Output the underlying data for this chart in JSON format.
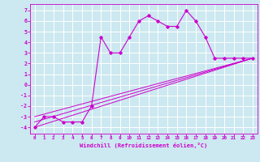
{
  "xlabel": "Windchill (Refroidissement éolien,°C)",
  "background_color": "#cce8f0",
  "grid_color": "#ffffff",
  "line_color": "#cc00cc",
  "x_ticks": [
    0,
    1,
    2,
    3,
    4,
    5,
    6,
    7,
    8,
    9,
    10,
    11,
    12,
    13,
    14,
    15,
    16,
    17,
    18,
    19,
    20,
    21,
    22,
    23
  ],
  "y_ticks": [
    -4,
    -3,
    -2,
    -1,
    0,
    1,
    2,
    3,
    4,
    5,
    6,
    7
  ],
  "xlim": [
    -0.5,
    23.5
  ],
  "ylim": [
    -4.6,
    7.6
  ],
  "scatter_x": [
    0,
    1,
    2,
    3,
    4,
    5,
    6,
    7,
    8,
    9,
    10,
    11,
    12,
    13,
    14,
    15,
    16,
    17,
    18,
    19,
    20,
    21,
    22,
    23
  ],
  "scatter_y": [
    -4,
    -3,
    -3,
    -3.5,
    -3.5,
    -3.5,
    -2,
    4.5,
    3,
    3,
    4.5,
    6,
    6.5,
    6,
    5.5,
    5.5,
    7,
    6,
    4.5,
    2.5,
    2.5,
    2.5,
    2.5,
    2.5
  ],
  "line1_x": [
    0,
    23
  ],
  "line1_y": [
    -4,
    2.5
  ],
  "line2_x": [
    0,
    23
  ],
  "line2_y": [
    -3.5,
    2.5
  ],
  "line3_x": [
    0,
    23
  ],
  "line3_y": [
    -3,
    2.5
  ]
}
